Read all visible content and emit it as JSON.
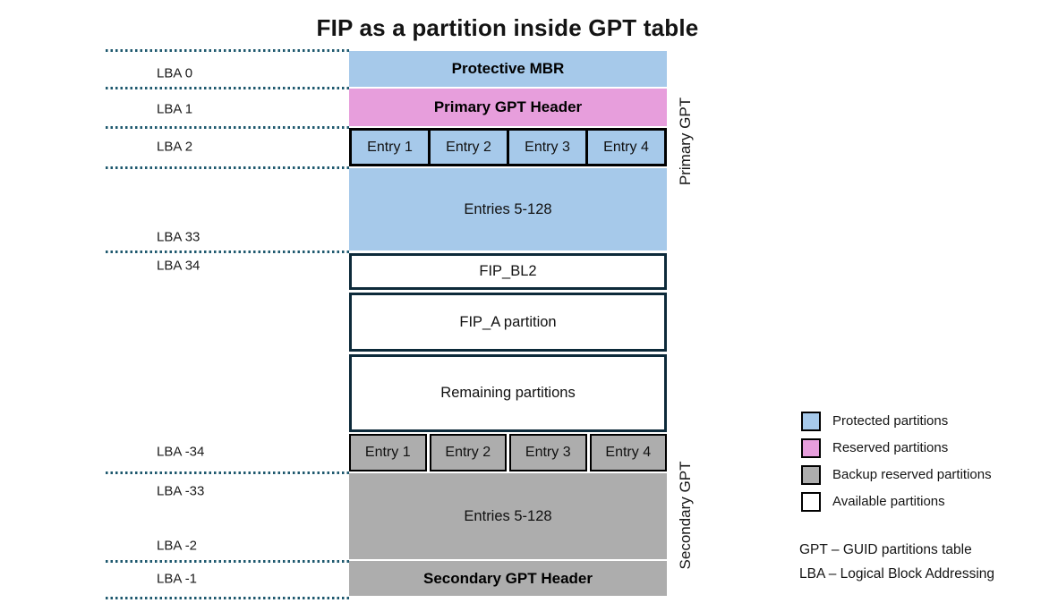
{
  "title": "FIP as a partition inside GPT table",
  "colors": {
    "protected": "#A6C9EA",
    "reserved": "#E79EDC",
    "backup": "#ADADAD",
    "available": "#FFFFFF",
    "block_border": "#0D2A3A",
    "entry_border": "#000000",
    "dotted_line": "#1E586E"
  },
  "diagram": {
    "lba_labels": [
      "LBA 0",
      "LBA 1",
      "LBA 2",
      "LBA 33",
      "LBA 34",
      "LBA -34",
      "LBA -33",
      "LBA -2",
      "LBA -1"
    ],
    "blocks": [
      {
        "label": "Protective MBR",
        "type": "protected",
        "bold": true
      },
      {
        "label": "Primary GPT Header",
        "type": "reserved",
        "bold": true
      },
      {
        "type": "protected",
        "entries": [
          "Entry 1",
          "Entry 2",
          "Entry 3",
          "Entry 4"
        ]
      },
      {
        "label": "Entries 5-128",
        "type": "protected"
      },
      {
        "label": "FIP_BL2",
        "type": "available"
      },
      {
        "label": "FIP_A partition",
        "type": "available"
      },
      {
        "label": "Remaining partitions",
        "type": "available"
      },
      {
        "type": "backup",
        "entries": [
          "Entry 1",
          "Entry 2",
          "Entry 3",
          "Entry 4"
        ]
      },
      {
        "label": "Entries 5-128",
        "type": "backup"
      },
      {
        "label": "Secondary GPT Header",
        "type": "backup",
        "bold": true
      }
    ],
    "side_labels": {
      "primary": "Primary GPT",
      "secondary": "Secondary GPT"
    }
  },
  "legend": {
    "items": [
      {
        "label": "Protected partitions",
        "color": "#A6C9EA"
      },
      {
        "label": "Reserved partitions",
        "color": "#E79EDC"
      },
      {
        "label": "Backup reserved partitions",
        "color": "#ADADAD"
      },
      {
        "label": "Available partitions",
        "color": "#FFFFFF"
      }
    ]
  },
  "definitions": [
    "GPT – GUID partitions table",
    "LBA – Logical Block Addressing"
  ]
}
